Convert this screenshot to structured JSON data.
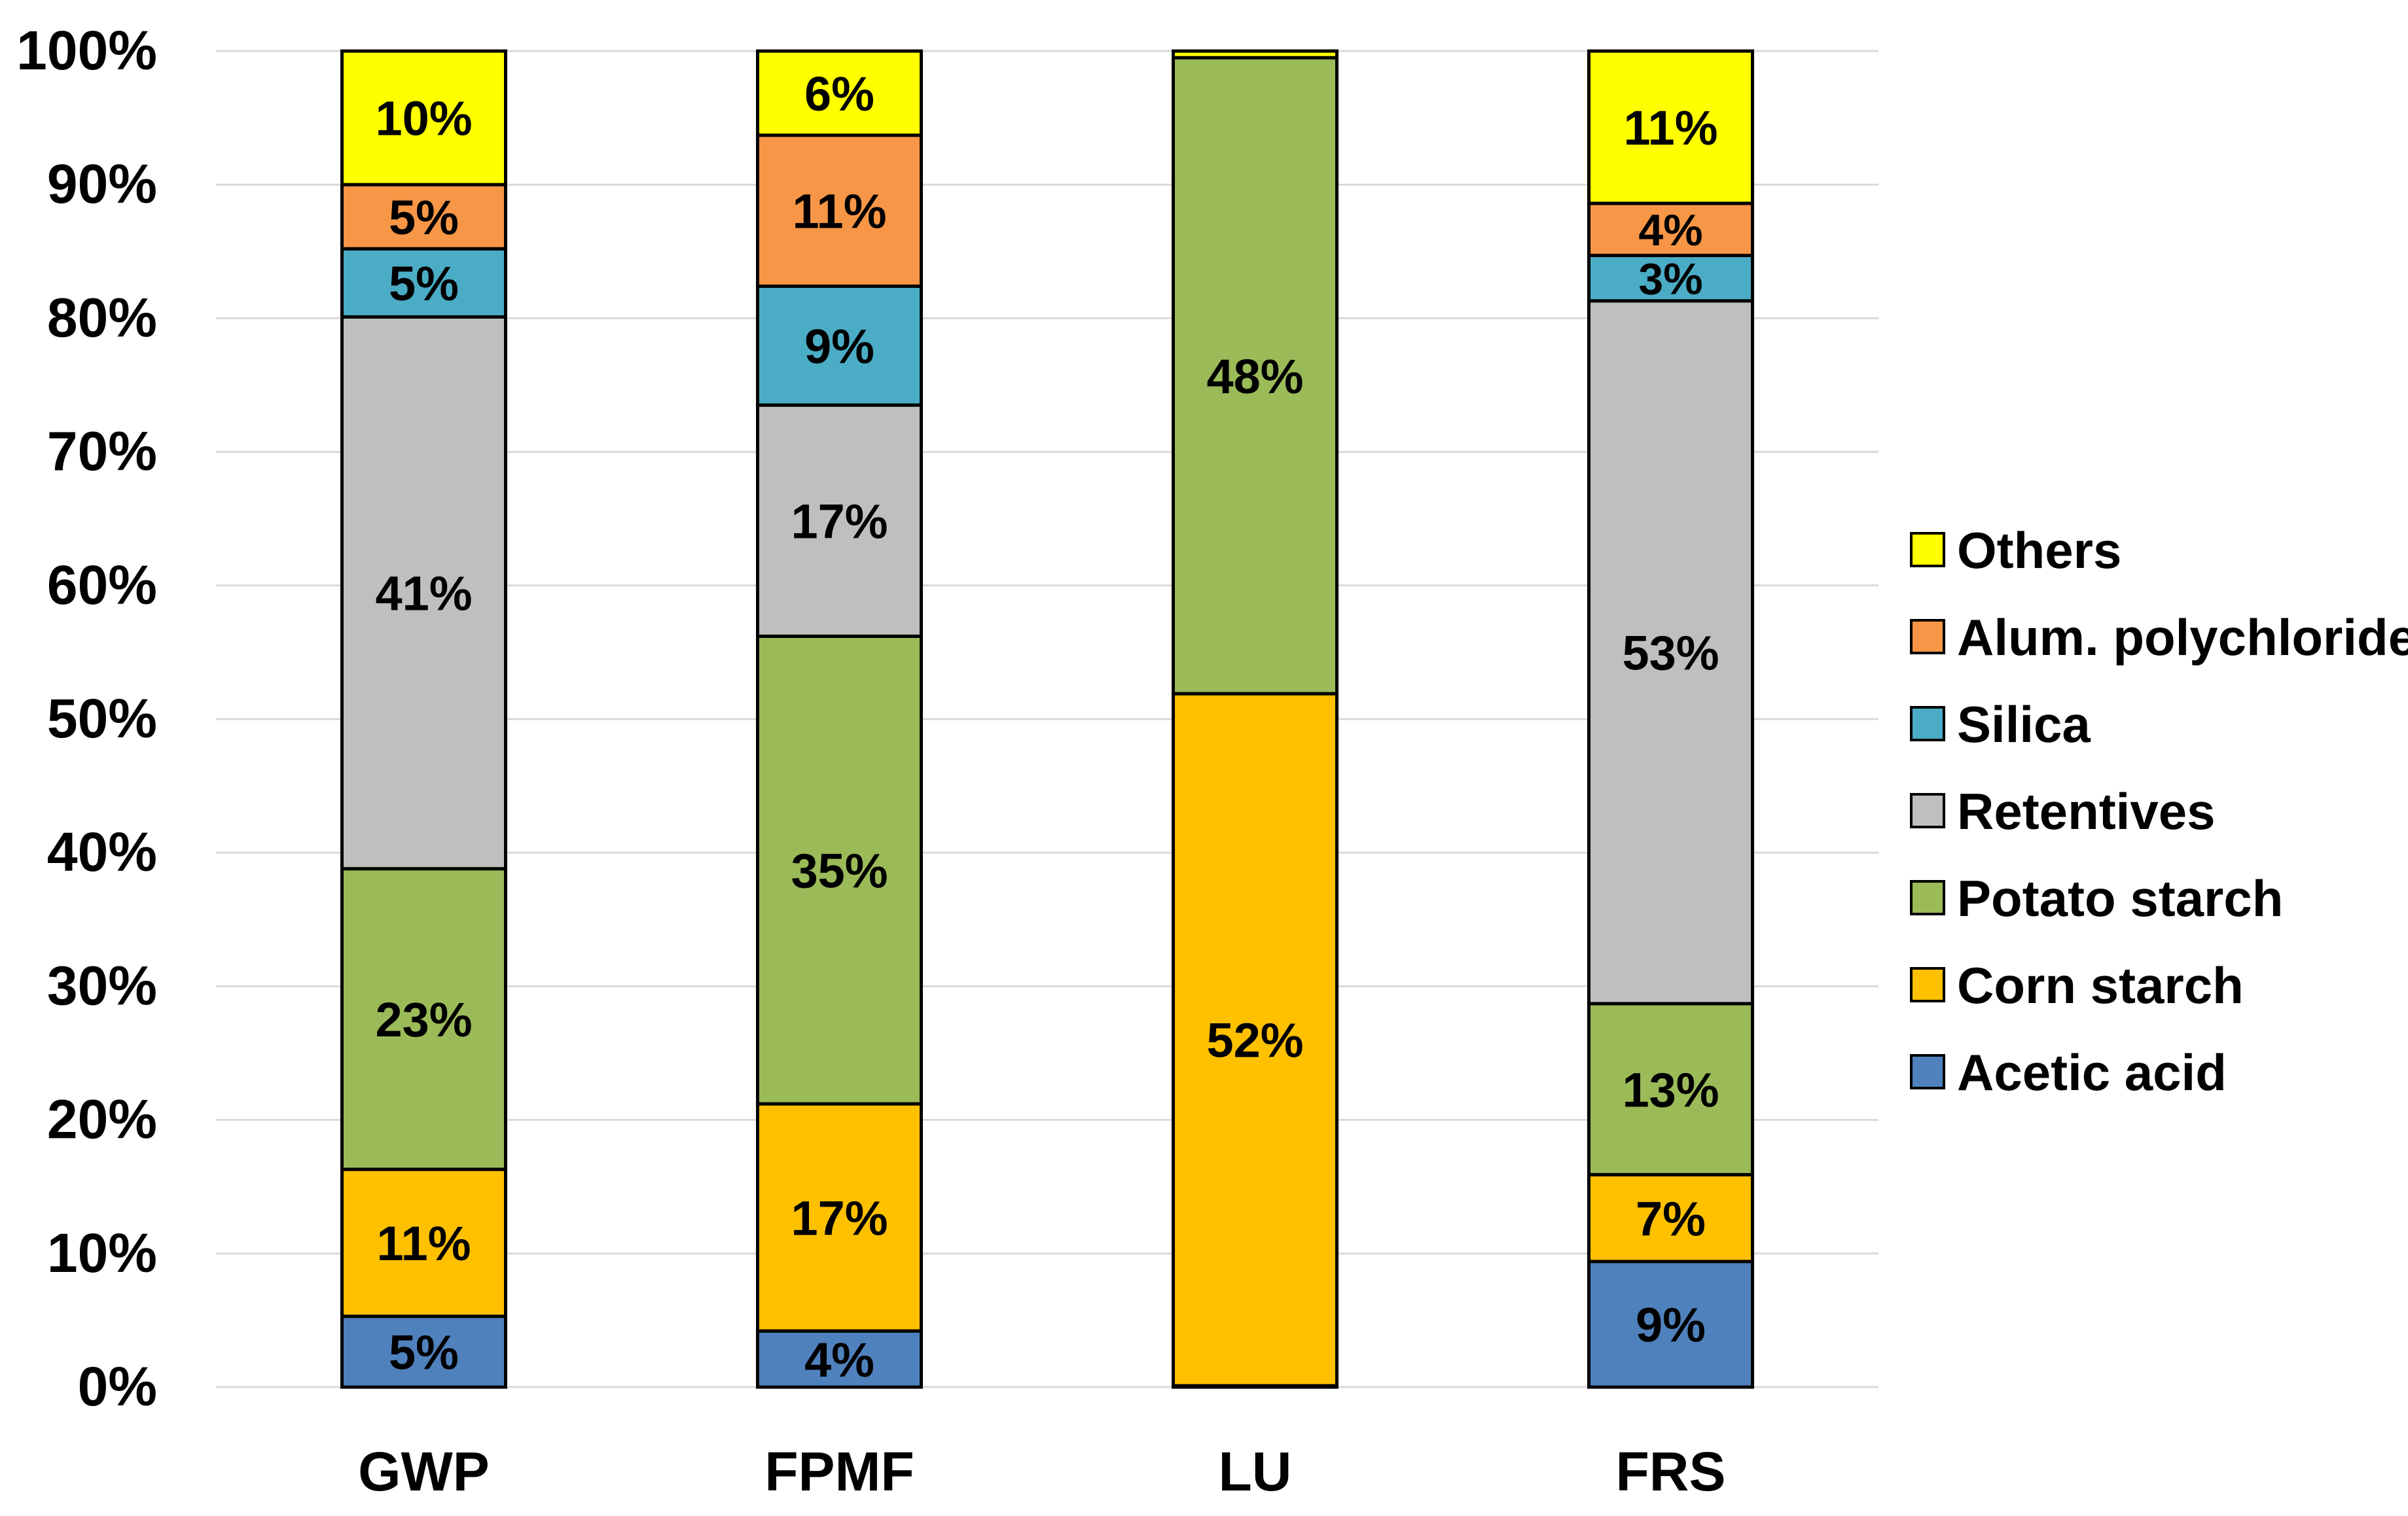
{
  "chart_data": {
    "type": "bar",
    "stacked": true,
    "percent": true,
    "title": "",
    "xlabel": "",
    "ylabel": "",
    "ylim": [
      0,
      100
    ],
    "grid": true,
    "legend_position": "right",
    "y_ticks": [
      "0%",
      "10%",
      "20%",
      "30%",
      "40%",
      "50%",
      "60%",
      "70%",
      "80%",
      "90%",
      "100%"
    ],
    "categories": [
      "GWP",
      "FPMF",
      "LU",
      "FRS"
    ],
    "series": [
      {
        "name": "Acetic acid",
        "color": "#4F81BD",
        "values": [
          5.3,
          4.2,
          0.1,
          9.4
        ],
        "labels": [
          "5%",
          "4%",
          "",
          "9%"
        ]
      },
      {
        "name": "Corn starch",
        "color": "#FFC000",
        "values": [
          11.0,
          17.0,
          51.8,
          6.5
        ],
        "labels": [
          "11%",
          "17%",
          "52%",
          "7%"
        ]
      },
      {
        "name": "Potato starch",
        "color": "#9BBB59",
        "values": [
          22.5,
          35.0,
          47.6,
          12.8
        ],
        "labels": [
          "23%",
          "35%",
          "48%",
          "13%"
        ]
      },
      {
        "name": "Retentives",
        "color": "#BFBFBF",
        "values": [
          41.3,
          17.3,
          0.0,
          52.6
        ],
        "labels": [
          "41%",
          "17%",
          "",
          "53%"
        ]
      },
      {
        "name": "Silica",
        "color": "#4BACC6",
        "values": [
          5.1,
          8.9,
          0.0,
          3.4
        ],
        "labels": [
          "5%",
          "9%",
          "",
          "3%"
        ]
      },
      {
        "name": "Alum. polychloride",
        "color": "#F79646",
        "values": [
          4.8,
          11.3,
          0.0,
          3.9
        ],
        "labels": [
          "5%",
          "11%",
          "",
          "4%"
        ]
      },
      {
        "name": "Others",
        "color": "#FFFF00",
        "values": [
          10.0,
          6.3,
          0.5,
          11.4
        ],
        "labels": [
          "10%",
          "6%",
          "",
          "11%"
        ]
      }
    ]
  }
}
